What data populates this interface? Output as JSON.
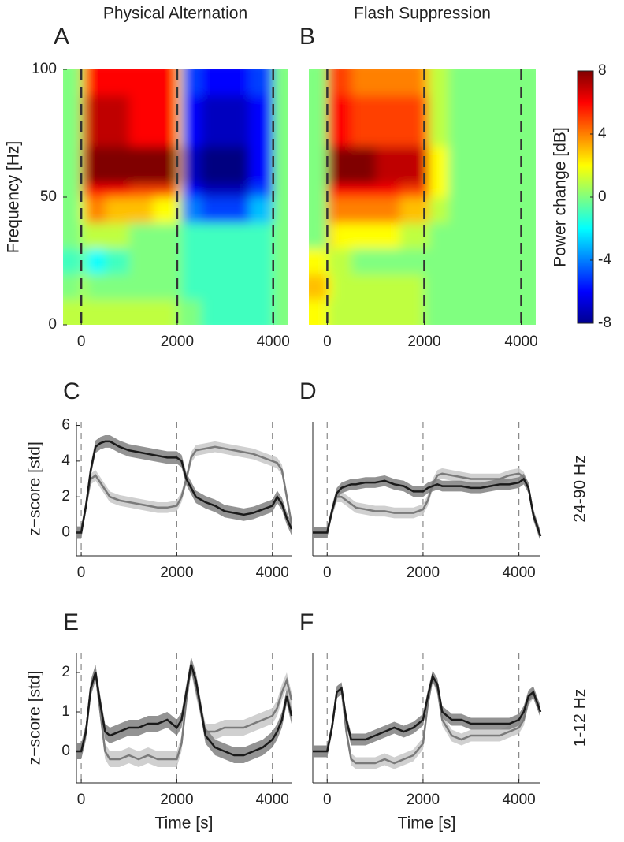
{
  "chart_data": [
    {
      "type": "heatmap",
      "title": "Physical Alternation",
      "label": "A",
      "ylabel": "Frequency [Hz]",
      "xlim": [
        -380,
        4300
      ],
      "xticks": [
        0,
        2000,
        4000
      ],
      "ylim": [
        0,
        100
      ],
      "yticks": [
        0,
        50,
        100
      ],
      "vlines": [
        0,
        2000,
        4000
      ],
      "clim": [
        -8,
        8
      ],
      "x_edges": [
        -380,
        0,
        100,
        500,
        1000,
        1500,
        2000,
        2100,
        2500,
        3000,
        3500,
        4000,
        4300
      ],
      "y_edges": [
        0,
        10,
        20,
        30,
        40,
        50,
        55,
        70,
        90,
        100
      ],
      "z": [
        [
          1,
          1,
          1,
          1,
          1,
          1,
          0,
          0,
          -1,
          -1,
          -1,
          0
        ],
        [
          0,
          1,
          0,
          0,
          0,
          0,
          0,
          -1,
          -1,
          -1,
          -1,
          0
        ],
        [
          -1,
          0,
          -2,
          -1,
          0,
          0,
          0,
          -1,
          -1,
          -1,
          -1,
          0
        ],
        [
          0,
          1,
          1,
          1,
          0,
          0,
          0,
          -1,
          -1,
          -1,
          -1,
          0
        ],
        [
          0,
          2,
          4,
          3,
          3,
          2,
          1,
          -4,
          -5,
          -5,
          -3,
          0
        ],
        [
          0,
          4,
          6,
          6,
          5,
          5,
          2,
          -6,
          -7,
          -7,
          -5,
          0
        ],
        [
          0,
          5,
          8,
          8,
          8,
          8,
          3,
          -7,
          -8,
          -8,
          -6,
          0
        ],
        [
          0,
          4,
          7,
          7,
          6,
          6,
          2,
          -6,
          -7,
          -7,
          -6,
          0
        ],
        [
          0,
          3,
          6,
          6,
          6,
          6,
          2,
          -5,
          -6,
          -6,
          -5,
          0
        ]
      ]
    },
    {
      "type": "heatmap",
      "title": "Flash Suppression",
      "label": "B",
      "xlim": [
        -380,
        4300
      ],
      "xticks": [
        0,
        2000,
        4000
      ],
      "ylim": [
        0,
        100
      ],
      "vlines": [
        0,
        2000,
        4000
      ],
      "clim": [
        -8,
        8
      ],
      "x_edges": [
        -380,
        0,
        100,
        500,
        1000,
        1500,
        2000,
        2100,
        2500,
        3000,
        3500,
        4000,
        4300
      ],
      "y_edges": [
        0,
        10,
        20,
        30,
        40,
        50,
        55,
        70,
        90,
        100
      ],
      "z": [
        [
          2,
          1,
          1,
          1,
          1,
          1,
          0,
          0,
          0,
          0,
          0,
          0
        ],
        [
          3,
          2,
          1,
          1,
          1,
          1,
          0,
          0,
          0,
          0,
          0,
          0
        ],
        [
          2,
          1,
          1,
          0,
          0,
          0,
          0,
          0,
          0,
          0,
          0,
          0
        ],
        [
          0,
          3,
          2,
          2,
          2,
          1,
          1,
          0,
          0,
          0,
          0,
          0
        ],
        [
          0,
          4,
          4,
          4,
          4,
          3,
          3,
          1,
          0,
          0,
          0,
          0
        ],
        [
          0,
          6,
          6,
          6,
          6,
          5,
          5,
          2,
          0,
          0,
          0,
          0
        ],
        [
          0,
          7,
          8,
          8,
          7,
          7,
          6,
          2,
          0,
          0,
          0,
          0
        ],
        [
          0,
          6,
          6,
          5,
          5,
          5,
          4,
          1,
          0,
          0,
          0,
          0
        ],
        [
          0,
          5,
          5,
          4,
          4,
          4,
          3,
          1,
          0,
          0,
          0,
          0
        ]
      ],
      "colorbar": {
        "label": "Power change [dB]",
        "ticks": [
          8,
          4,
          0,
          -4,
          -8
        ]
      }
    },
    {
      "type": "line",
      "label": "C",
      "ylabel": "z−score [std]",
      "xlim": [
        -100,
        4400
      ],
      "xticks": [
        0,
        2000,
        4000
      ],
      "ylim": [
        -1.3,
        6.2
      ],
      "yticks": [
        0,
        2,
        4,
        6
      ],
      "vlines": [
        0,
        2000,
        4000
      ],
      "x": [
        -100,
        0,
        100,
        200,
        300,
        400,
        500,
        600,
        800,
        1000,
        1200,
        1400,
        1600,
        1800,
        2000,
        2100,
        2200,
        2300,
        2400,
        2600,
        2800,
        3000,
        3200,
        3400,
        3600,
        3800,
        4000,
        4100,
        4200,
        4300,
        4400
      ],
      "series": [
        {
          "color": "#7a7a7a",
          "band_color": "#c8c8c8",
          "error": 0.3,
          "values": [
            0,
            0,
            1.5,
            3.0,
            3.2,
            2.8,
            2.4,
            2.0,
            1.8,
            1.7,
            1.6,
            1.5,
            1.4,
            1.4,
            1.5,
            2.0,
            3.0,
            4.2,
            4.6,
            4.7,
            4.8,
            4.7,
            4.6,
            4.5,
            4.4,
            4.2,
            4.0,
            3.9,
            3.5,
            2.0,
            0.5
          ]
        },
        {
          "color": "#1a1a1a",
          "band_color": "#808080",
          "error": 0.35,
          "values": [
            0,
            0,
            1.5,
            3.5,
            4.8,
            5.0,
            5.1,
            5.1,
            4.8,
            4.6,
            4.5,
            4.4,
            4.3,
            4.2,
            4.2,
            4.0,
            3.0,
            2.5,
            2.0,
            1.7,
            1.5,
            1.2,
            1.1,
            1.0,
            1.1,
            1.3,
            1.5,
            2.0,
            1.6,
            0.8,
            0.2
          ]
        }
      ]
    },
    {
      "type": "line",
      "label": "D",
      "row_label": "24-90 Hz",
      "xlim": [
        -300,
        4450
      ],
      "xticks": [
        0,
        2000,
        4000
      ],
      "ylim": [
        -1.3,
        6.2
      ],
      "vlines": [
        0,
        2000,
        4000
      ],
      "x": [
        -300,
        0,
        100,
        200,
        300,
        400,
        500,
        600,
        800,
        1000,
        1200,
        1400,
        1600,
        1800,
        2000,
        2100,
        2200,
        2300,
        2400,
        2600,
        2800,
        3000,
        3200,
        3400,
        3600,
        3800,
        4000,
        4100,
        4200,
        4300,
        4450
      ],
      "series": [
        {
          "color": "#7a7a7a",
          "band_color": "#c8c8c8",
          "error": 0.3,
          "values": [
            0,
            0,
            1.2,
            2.0,
            2.0,
            1.8,
            1.6,
            1.4,
            1.3,
            1.2,
            1.2,
            1.1,
            1.1,
            1.1,
            1.3,
            1.8,
            2.7,
            3.2,
            3.3,
            3.2,
            3.1,
            3.0,
            3.0,
            3.0,
            3.0,
            3.2,
            3.3,
            3.1,
            2.5,
            1.0,
            -0.2
          ]
        },
        {
          "color": "#1a1a1a",
          "band_color": "#808080",
          "error": 0.3,
          "values": [
            0,
            0,
            1.2,
            2.2,
            2.5,
            2.6,
            2.7,
            2.7,
            2.8,
            2.8,
            2.9,
            2.7,
            2.6,
            2.3,
            2.3,
            2.5,
            2.6,
            2.7,
            2.6,
            2.6,
            2.6,
            2.5,
            2.5,
            2.6,
            2.7,
            2.7,
            2.8,
            3.0,
            2.5,
            1.0,
            -0.2
          ]
        }
      ]
    },
    {
      "type": "line",
      "label": "E",
      "ylabel": "z−score [std]",
      "xlabel": "Time [s]",
      "xlim": [
        -100,
        4400
      ],
      "xticks": [
        0,
        2000,
        4000
      ],
      "ylim": [
        -0.8,
        2.5
      ],
      "yticks": [
        0,
        1,
        2
      ],
      "vlines": [
        0,
        2000,
        4000
      ],
      "x": [
        -100,
        0,
        100,
        200,
        300,
        400,
        500,
        600,
        800,
        1000,
        1200,
        1400,
        1600,
        1800,
        2000,
        2100,
        2200,
        2300,
        2400,
        2600,
        2800,
        3000,
        3200,
        3400,
        3600,
        3800,
        4000,
        4100,
        4200,
        4300,
        4400
      ],
      "series": [
        {
          "color": "#7a7a7a",
          "band_color": "#c8c8c8",
          "error": 0.2,
          "values": [
            0,
            0,
            0.5,
            1.6,
            2.0,
            1.0,
            0.0,
            -0.2,
            -0.2,
            -0.1,
            -0.2,
            -0.1,
            -0.2,
            -0.2,
            -0.2,
            0.2,
            1.3,
            2.2,
            1.6,
            0.5,
            0.5,
            0.6,
            0.6,
            0.6,
            0.7,
            0.8,
            0.9,
            1.1,
            1.5,
            1.8,
            1.3
          ]
        },
        {
          "color": "#1a1a1a",
          "band_color": "#808080",
          "error": 0.2,
          "values": [
            0,
            0,
            0.5,
            1.6,
            2.0,
            1.2,
            0.5,
            0.4,
            0.5,
            0.6,
            0.6,
            0.7,
            0.7,
            0.8,
            0.6,
            0.8,
            1.5,
            2.2,
            1.8,
            0.4,
            0.1,
            0.0,
            -0.1,
            -0.1,
            0.0,
            0.1,
            0.3,
            0.5,
            0.8,
            1.4,
            0.9
          ]
        }
      ]
    },
    {
      "type": "line",
      "label": "F",
      "row_label": "1-12 Hz",
      "xlabel": "Time [s]",
      "xlim": [
        -300,
        4450
      ],
      "xticks": [
        0,
        2000,
        4000
      ],
      "ylim": [
        -0.8,
        2.5
      ],
      "vlines": [
        0,
        2000,
        4000
      ],
      "x": [
        -300,
        0,
        100,
        200,
        300,
        400,
        500,
        600,
        800,
        1000,
        1200,
        1400,
        1600,
        1800,
        2000,
        2100,
        2200,
        2300,
        2400,
        2600,
        2800,
        3000,
        3200,
        3400,
        3600,
        3800,
        4000,
        4100,
        4200,
        4300,
        4450
      ],
      "series": [
        {
          "color": "#7a7a7a",
          "band_color": "#c8c8c8",
          "error": 0.15,
          "values": [
            0,
            0,
            0.6,
            1.5,
            1.6,
            0.5,
            -0.2,
            -0.3,
            -0.3,
            -0.3,
            -0.2,
            -0.3,
            -0.2,
            -0.1,
            0.2,
            1.2,
            1.9,
            1.6,
            0.8,
            0.4,
            0.3,
            0.4,
            0.4,
            0.4,
            0.4,
            0.5,
            0.6,
            0.8,
            1.3,
            1.5,
            1.0
          ]
        },
        {
          "color": "#1a1a1a",
          "band_color": "#808080",
          "error": 0.15,
          "values": [
            0,
            0,
            0.6,
            1.5,
            1.6,
            0.8,
            0.3,
            0.3,
            0.3,
            0.4,
            0.5,
            0.6,
            0.5,
            0.6,
            0.8,
            1.4,
            1.9,
            1.7,
            1.0,
            0.8,
            0.8,
            0.7,
            0.7,
            0.7,
            0.7,
            0.7,
            0.8,
            1.0,
            1.4,
            1.5,
            1.0
          ]
        }
      ]
    }
  ]
}
